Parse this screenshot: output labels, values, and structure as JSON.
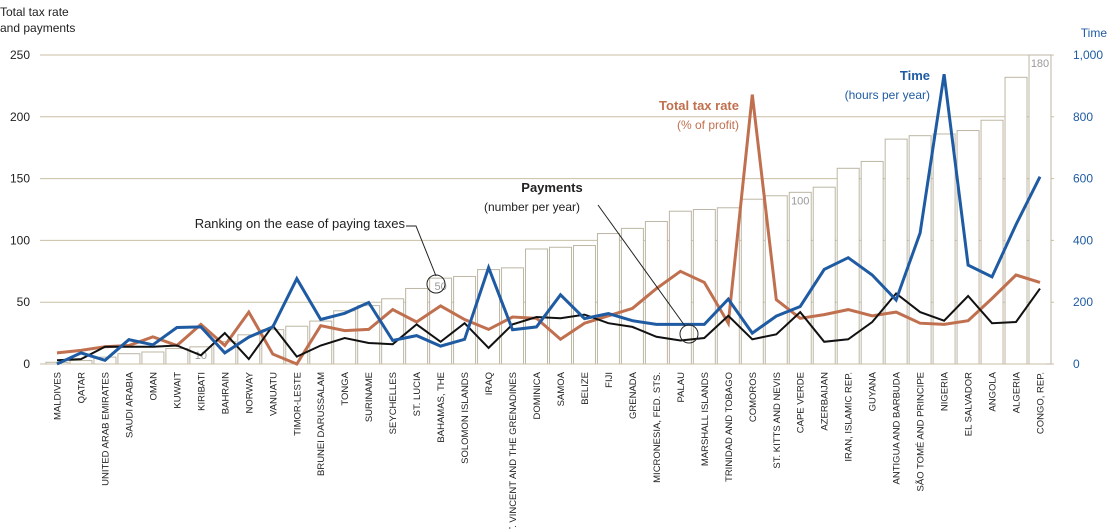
{
  "chart_data": {
    "type": "combo",
    "y_axis_title": [
      "Total tax rate",
      "and payments"
    ],
    "y2_axis_title": "Time",
    "categories": [
      "MALDIVES",
      "QATAR",
      "UNITED ARAB EMIRATES",
      "SAUDI ARABIA",
      "OMAN",
      "KUWAIT",
      "KIRIBATI",
      "BAHRAIN",
      "NORWAY",
      "VANUATU",
      "TIMOR-LESTE",
      "BRUNEI DARUSSALAM",
      "TONGA",
      "SURINAME",
      "SEYCHELLES",
      "ST. LUCIA",
      "BAHAMAS, THE",
      "SOLOMON ISLANDS",
      "IRAQ",
      "ST. VINCENT AND THE GRENADINES",
      "DOMINICA",
      "SAMOA",
      "BELIZE",
      "FIJI",
      "GRENADA",
      "MICRONESIA, FED. STS.",
      "PALAU",
      "MARSHALL ISLANDS",
      "TRINIDAD AND TOBAGO",
      "COMOROS",
      "ST. KITTS AND NEVIS",
      "CAPE VERDE",
      "AZERBAIJAN",
      "IRAN, ISLAMIC REP.",
      "GUYANA",
      "ANTIGUA AND BARBUDA",
      "SÃO TOMÉ AND PRINCIPE",
      "NIGERIA",
      "EL SALVADOR",
      "ANGOLA",
      "ALGERIA",
      "CONGO, REP."
    ],
    "ylim": [
      0,
      250
    ],
    "yticks": [
      0,
      50,
      100,
      150,
      200,
      250
    ],
    "y2lim": [
      0,
      1000
    ],
    "y2ticks": [
      0,
      200,
      400,
      600,
      800,
      {
        "value": 1000,
        "label": "1,000"
      }
    ],
    "y3lim": [
      0,
      180
    ],
    "grid": true,
    "series": [
      {
        "name": "Ranking on the ease of paying taxes",
        "kind": "bar",
        "axis": "y3",
        "color": "#ffffff",
        "values": [
          1,
          2,
          4,
          6,
          7,
          9,
          10,
          13,
          17,
          20,
          22,
          25,
          31,
          34,
          38,
          44,
          50,
          51,
          55,
          56,
          67,
          68,
          69,
          76,
          79,
          83,
          89,
          90,
          91,
          96,
          98,
          100,
          103,
          114,
          118,
          131,
          133,
          134,
          136,
          142,
          167,
          180
        ],
        "value_labels": [
          null,
          null,
          null,
          null,
          null,
          null,
          "10",
          null,
          null,
          null,
          null,
          null,
          null,
          null,
          null,
          null,
          "50",
          null,
          null,
          null,
          null,
          null,
          null,
          null,
          null,
          null,
          null,
          null,
          null,
          null,
          null,
          "100",
          null,
          null,
          null,
          null,
          null,
          null,
          null,
          null,
          null,
          "180"
        ]
      },
      {
        "name": "Total tax rate",
        "subtitle": "(% of profit)",
        "kind": "line",
        "axis": "y",
        "color": "#c0704f",
        "values": [
          9,
          11,
          14,
          15,
          22,
          15,
          32,
          15,
          42,
          8,
          0,
          31,
          27,
          28,
          44,
          34,
          47,
          36,
          28,
          38,
          37,
          20,
          33,
          39,
          45,
          61,
          75,
          66,
          33,
          218,
          52,
          37,
          40,
          44,
          39,
          42,
          33,
          32,
          35,
          53,
          72,
          66
        ]
      },
      {
        "name": "Time",
        "subtitle": "(hours per year)",
        "kind": "line",
        "axis": "y2",
        "color": "#1f5ba3",
        "values": [
          0,
          36,
          12,
          79,
          62,
          118,
          120,
          36,
          87,
          120,
          276,
          144,
          164,
          199,
          76,
          92,
          58,
          80,
          312,
          111,
          120,
          224,
          147,
          163,
          140,
          128,
          128,
          128,
          210,
          100,
          155,
          186,
          306,
          344,
          288,
          207,
          424,
          938,
          320,
          282,
          451,
          606
        ]
      },
      {
        "name": "Payments",
        "subtitle": "(number per year)",
        "kind": "line",
        "axis": "y",
        "color": "#111111",
        "values": [
          3,
          4,
          14,
          14,
          14,
          15,
          7,
          25,
          4,
          31,
          6,
          15,
          21,
          17,
          16,
          32,
          18,
          33,
          13,
          32,
          38,
          37,
          40,
          33,
          30,
          22,
          19,
          21,
          39,
          20,
          24,
          42,
          18,
          20,
          34,
          57,
          42,
          35,
          55,
          33,
          34,
          61
        ]
      }
    ]
  }
}
